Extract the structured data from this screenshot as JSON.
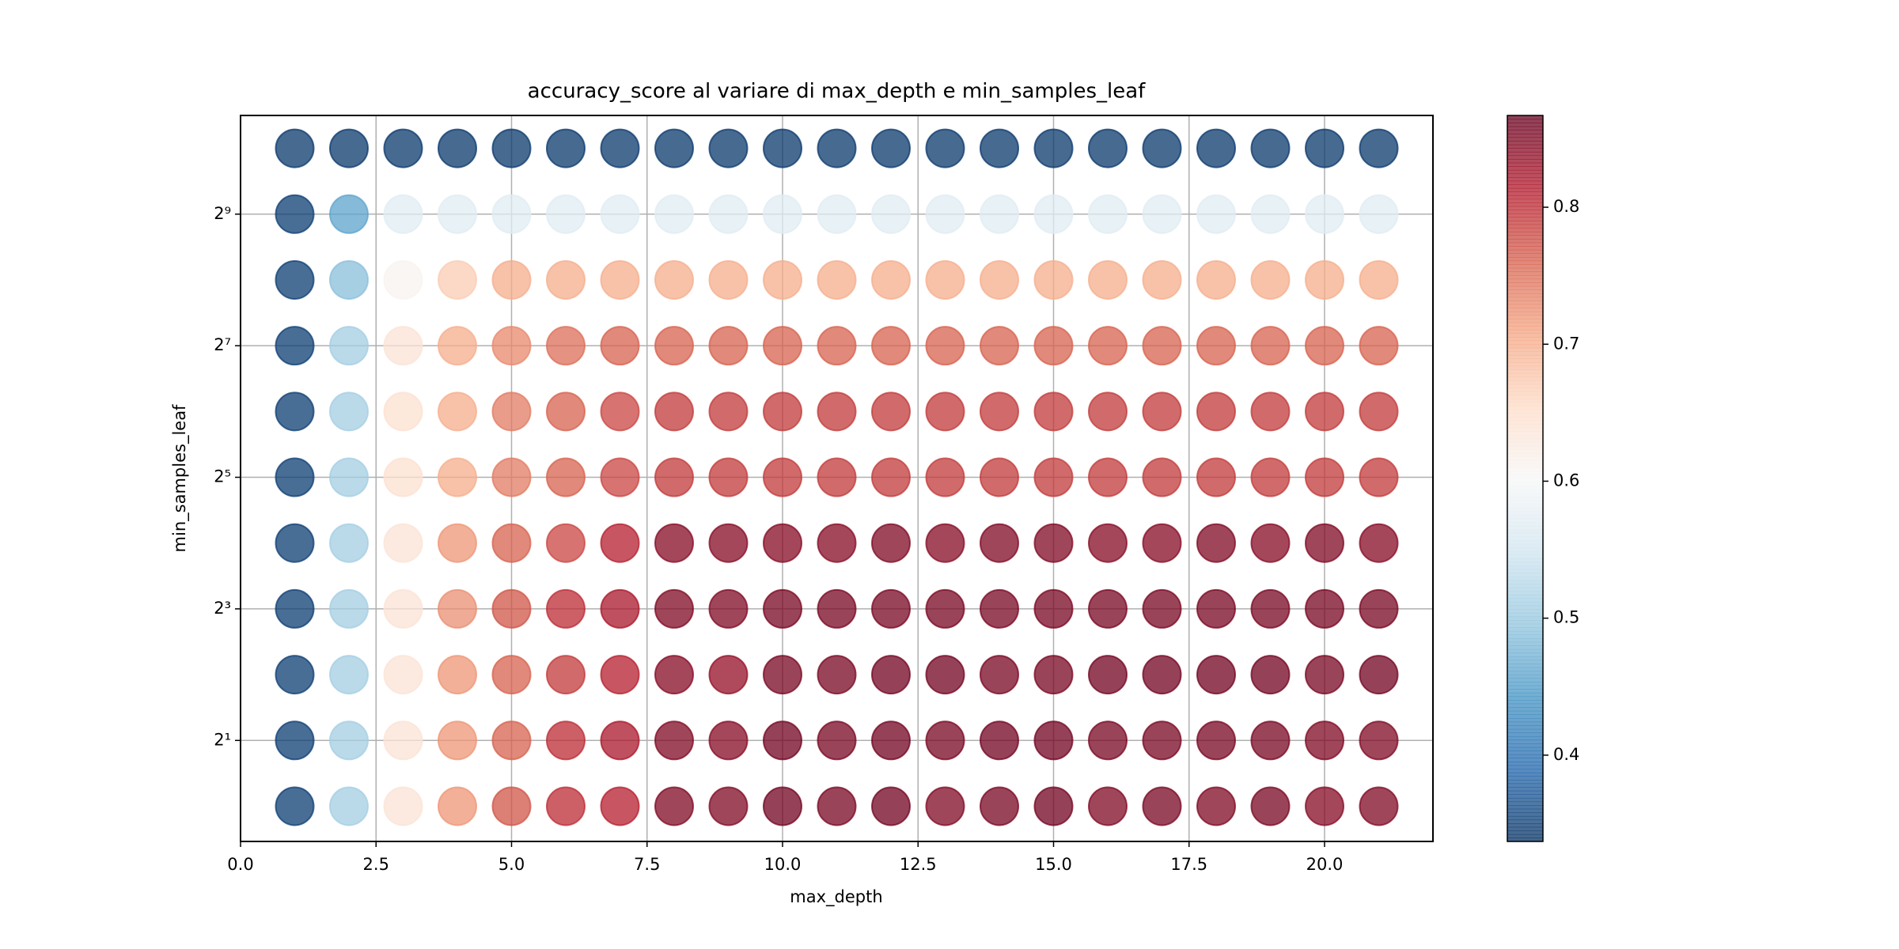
{
  "chart_data": {
    "type": "scatter",
    "title": "accuracy_score al variare di max_depth e min_samples_leaf",
    "x_label": "max_depth",
    "y_label": "min_samples_leaf",
    "x": [
      1,
      2,
      3,
      4,
      5,
      6,
      7,
      8,
      9,
      10,
      11,
      12,
      13,
      14,
      15,
      16,
      17,
      18,
      19,
      20,
      21
    ],
    "y": [
      1,
      2,
      4,
      8,
      16,
      32,
      64,
      128,
      256,
      512,
      1024
    ],
    "values": [
      [
        0.35,
        0.51,
        0.64,
        0.72,
        0.77,
        0.8,
        0.81,
        0.85,
        0.85,
        0.86,
        0.855,
        0.86,
        0.85,
        0.855,
        0.86,
        0.85,
        0.855,
        0.85,
        0.855,
        0.845,
        0.85
      ],
      [
        0.35,
        0.51,
        0.64,
        0.72,
        0.76,
        0.8,
        0.82,
        0.85,
        0.845,
        0.86,
        0.855,
        0.86,
        0.855,
        0.86,
        0.86,
        0.855,
        0.855,
        0.855,
        0.855,
        0.85,
        0.85
      ],
      [
        0.35,
        0.51,
        0.64,
        0.72,
        0.76,
        0.79,
        0.81,
        0.845,
        0.835,
        0.855,
        0.855,
        0.86,
        0.86,
        0.855,
        0.855,
        0.86,
        0.86,
        0.86,
        0.86,
        0.855,
        0.86
      ],
      [
        0.35,
        0.51,
        0.64,
        0.725,
        0.77,
        0.8,
        0.82,
        0.85,
        0.85,
        0.855,
        0.855,
        0.855,
        0.855,
        0.855,
        0.855,
        0.855,
        0.855,
        0.855,
        0.855,
        0.855,
        0.855
      ],
      [
        0.35,
        0.51,
        0.64,
        0.72,
        0.76,
        0.78,
        0.81,
        0.845,
        0.845,
        0.845,
        0.845,
        0.85,
        0.845,
        0.85,
        0.85,
        0.845,
        0.845,
        0.85,
        0.845,
        0.85,
        0.845
      ],
      [
        0.35,
        0.51,
        0.645,
        0.7,
        0.74,
        0.76,
        0.78,
        0.79,
        0.79,
        0.79,
        0.79,
        0.79,
        0.79,
        0.79,
        0.79,
        0.79,
        0.79,
        0.79,
        0.79,
        0.79,
        0.79
      ],
      [
        0.35,
        0.51,
        0.645,
        0.7,
        0.74,
        0.76,
        0.78,
        0.79,
        0.79,
        0.79,
        0.79,
        0.79,
        0.79,
        0.79,
        0.79,
        0.79,
        0.79,
        0.79,
        0.79,
        0.79,
        0.79
      ],
      [
        0.35,
        0.51,
        0.64,
        0.7,
        0.73,
        0.75,
        0.76,
        0.76,
        0.76,
        0.76,
        0.76,
        0.76,
        0.76,
        0.76,
        0.76,
        0.76,
        0.76,
        0.76,
        0.76,
        0.76,
        0.76
      ],
      [
        0.35,
        0.49,
        0.61,
        0.67,
        0.7,
        0.7,
        0.7,
        0.7,
        0.7,
        0.7,
        0.7,
        0.7,
        0.7,
        0.7,
        0.7,
        0.7,
        0.7,
        0.7,
        0.7,
        0.7,
        0.7
      ],
      [
        0.35,
        0.46,
        0.57,
        0.57,
        0.57,
        0.57,
        0.57,
        0.57,
        0.57,
        0.57,
        0.57,
        0.57,
        0.57,
        0.57,
        0.57,
        0.57,
        0.57,
        0.57,
        0.57,
        0.57,
        0.57
      ],
      [
        0.345,
        0.345,
        0.345,
        0.345,
        0.345,
        0.345,
        0.345,
        0.345,
        0.345,
        0.345,
        0.345,
        0.345,
        0.345,
        0.345,
        0.345,
        0.345,
        0.345,
        0.345,
        0.345,
        0.345,
        0.345
      ]
    ],
    "xlim": [
      0,
      22
    ],
    "xticks": [
      {
        "value": 0,
        "label": "0.0"
      },
      {
        "value": 2.5,
        "label": "2.5"
      },
      {
        "value": 5,
        "label": "5.0"
      },
      {
        "value": 7.5,
        "label": "7.5"
      },
      {
        "value": 10,
        "label": "10.0"
      },
      {
        "value": 12.5,
        "label": "12.5"
      },
      {
        "value": 15,
        "label": "15.0"
      },
      {
        "value": 17.5,
        "label": "17.5"
      },
      {
        "value": 20,
        "label": "20.0"
      }
    ],
    "ylim": [
      0.69,
      1448
    ],
    "y_log_base": 2,
    "yticks": [
      {
        "value": 2,
        "label": "2¹"
      },
      {
        "value": 8,
        "label": "2³"
      },
      {
        "value": 32,
        "label": "2⁵"
      },
      {
        "value": 128,
        "label": "2⁷"
      },
      {
        "value": 512,
        "label": "2⁹"
      }
    ],
    "grid": true,
    "colormap": "RdBu_r",
    "alpha": 0.75,
    "clim": [
      0.337,
      0.867
    ],
    "cticks": [
      0.4,
      0.5,
      0.6,
      0.7,
      0.8
    ]
  }
}
